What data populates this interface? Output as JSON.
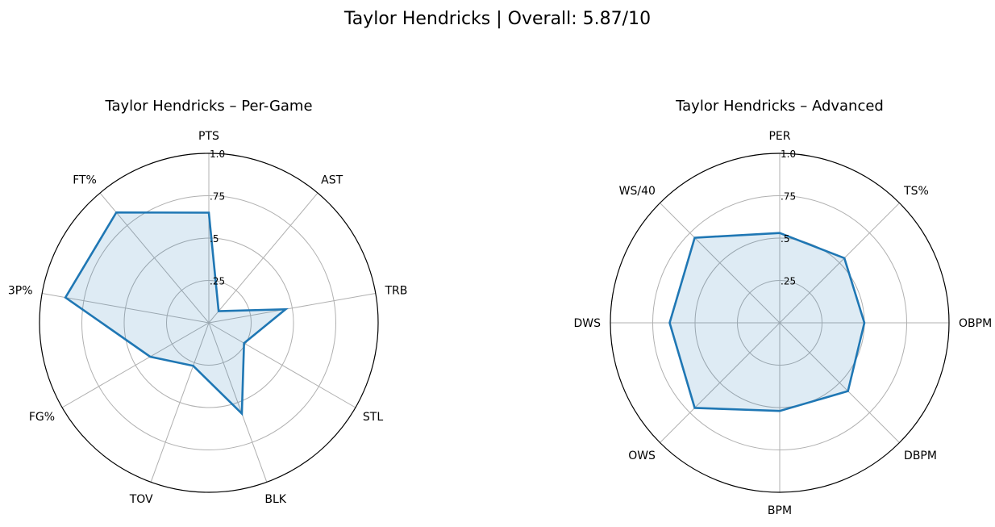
{
  "figure_title": "Taylor Hendricks | Overall: 5.87/10",
  "colors": {
    "line": "#1f77b4",
    "fill": "#1f77b4",
    "grid": "#b0b0b0",
    "frame": "#000000"
  },
  "chart_data": [
    {
      "type": "radar",
      "title": "Taylor Hendricks – Per-Game",
      "axes": [
        "PTS",
        "AST",
        "TRB",
        "STL",
        "BLK",
        "TOV",
        "FG%",
        "3P%",
        "FT%"
      ],
      "values": [
        0.65,
        0.09,
        0.46,
        0.24,
        0.57,
        0.27,
        0.4,
        0.86,
        0.85
      ],
      "rlim": [
        0,
        1
      ],
      "radial_ticks": [
        0.25,
        0.5,
        0.75,
        1.0
      ],
      "radial_tick_labels": [
        ".25",
        ".5",
        ".75",
        "1.0"
      ],
      "grid": true
    },
    {
      "type": "radar",
      "title": "Taylor Hendricks – Advanced",
      "axes": [
        "PER",
        "TS%",
        "OBPM",
        "DBPM",
        "BPM",
        "OWS",
        "DWS",
        "WS/40"
      ],
      "values": [
        0.53,
        0.54,
        0.5,
        0.57,
        0.52,
        0.71,
        0.65,
        0.71
      ],
      "rlim": [
        0,
        1
      ],
      "radial_ticks": [
        0.25,
        0.5,
        0.75,
        1.0
      ],
      "radial_tick_labels": [
        ".25",
        ".5",
        ".75",
        "1.0"
      ],
      "grid": true
    }
  ]
}
